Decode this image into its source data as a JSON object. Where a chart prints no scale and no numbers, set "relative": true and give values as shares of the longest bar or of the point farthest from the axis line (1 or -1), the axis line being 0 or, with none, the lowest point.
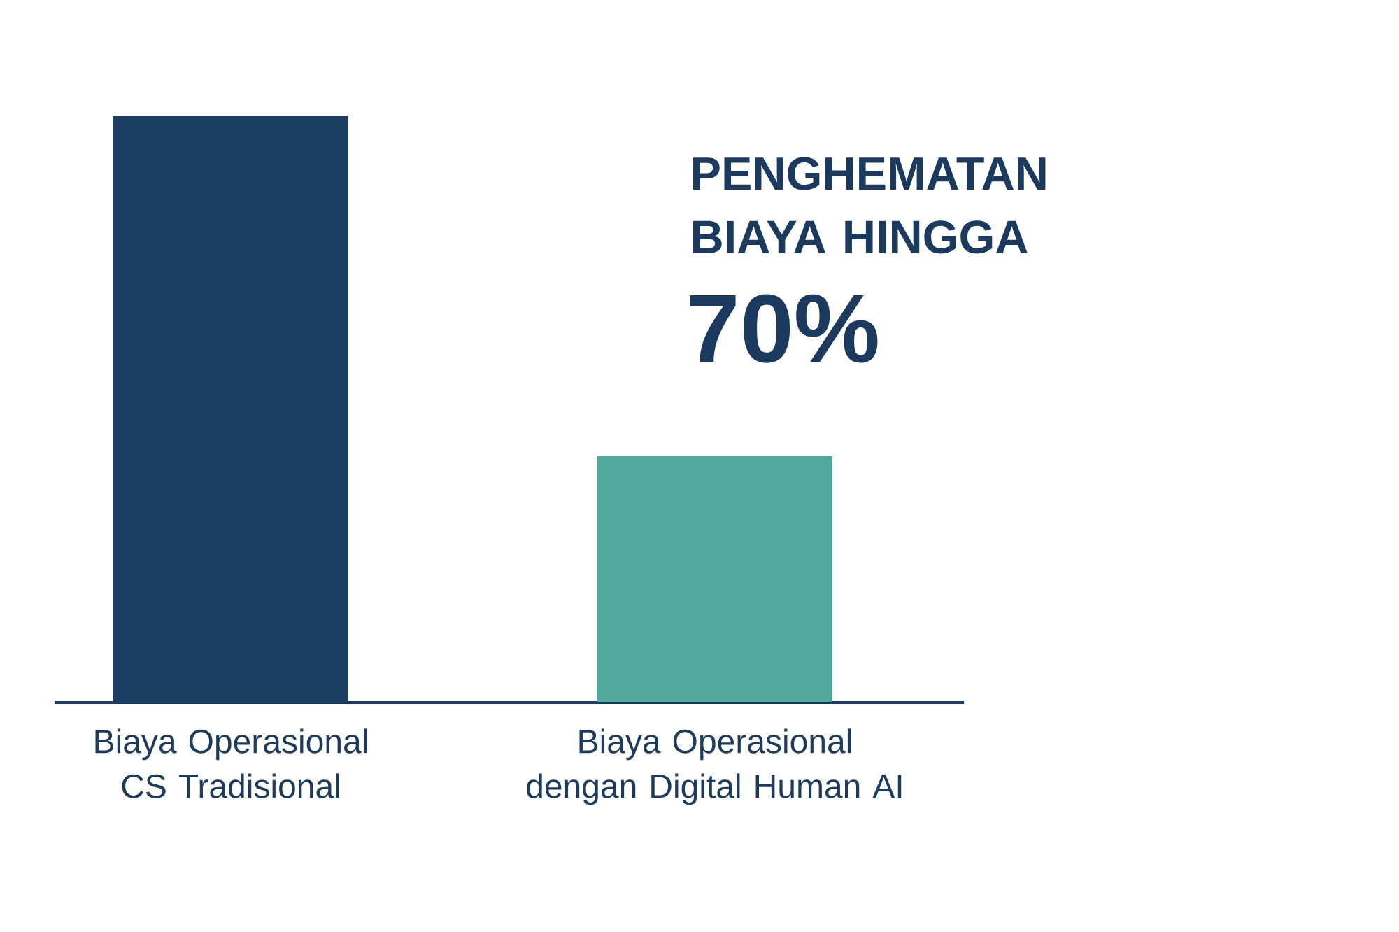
{
  "chart_data": {
    "type": "bar",
    "relative": true,
    "categories": [
      "Biaya Operasional CS Tradisional",
      "Biaya Operasional dengan Digital Human AI"
    ],
    "values": [
      1,
      0.42
    ],
    "colors": [
      "#1c3d63",
      "#4fa89e"
    ],
    "annotations": [
      "PENGHEMATAN BIAYA HINGGA",
      "70%"
    ]
  }
}
